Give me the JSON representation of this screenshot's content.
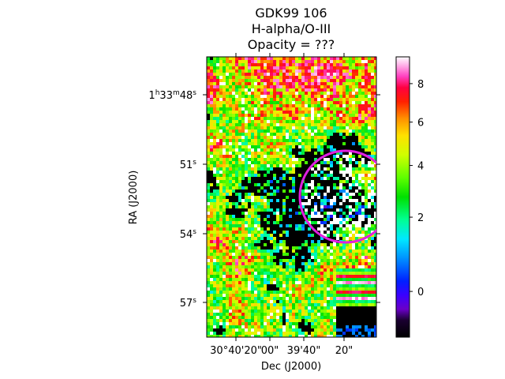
{
  "chart_data": {
    "type": "heatmap",
    "title_lines": [
      "GDK99 106",
      "H-alpha/O-III",
      "Opacity = ???"
    ],
    "xlabel": "Dec (J2000)",
    "ylabel": "RA (J2000)",
    "x_ticks": [
      "30°40'20\"",
      "00\"",
      "39'40\"",
      "20\""
    ],
    "y_ticks": [
      {
        "label": "1h33m48s",
        "main": "1",
        "parts": [
          [
            "h",
            "33"
          ],
          [
            "m",
            "48"
          ],
          [
            "s",
            ""
          ]
        ]
      },
      {
        "label": "51s",
        "main": "51",
        "parts": [
          [
            "s",
            ""
          ]
        ]
      },
      {
        "label": "54s",
        "main": "54",
        "parts": [
          [
            "s",
            ""
          ]
        ]
      },
      {
        "label": "57s",
        "main": "57",
        "parts": [
          [
            "s",
            ""
          ]
        ]
      }
    ],
    "colorbar": {
      "colormap": "gist_ncar-like (black-violet-blue-cyan-green-yellow-orange-red-pink-white)",
      "tick_values": [
        0,
        2,
        4,
        6,
        8
      ],
      "tick_labels": [
        "0",
        "2",
        "4",
        "6",
        "8"
      ],
      "range": [
        -0.5,
        9
      ]
    },
    "annotations": [
      {
        "type": "circle",
        "color": "#e020e0",
        "description": "magenta circle on the right side of the image"
      }
    ]
  }
}
